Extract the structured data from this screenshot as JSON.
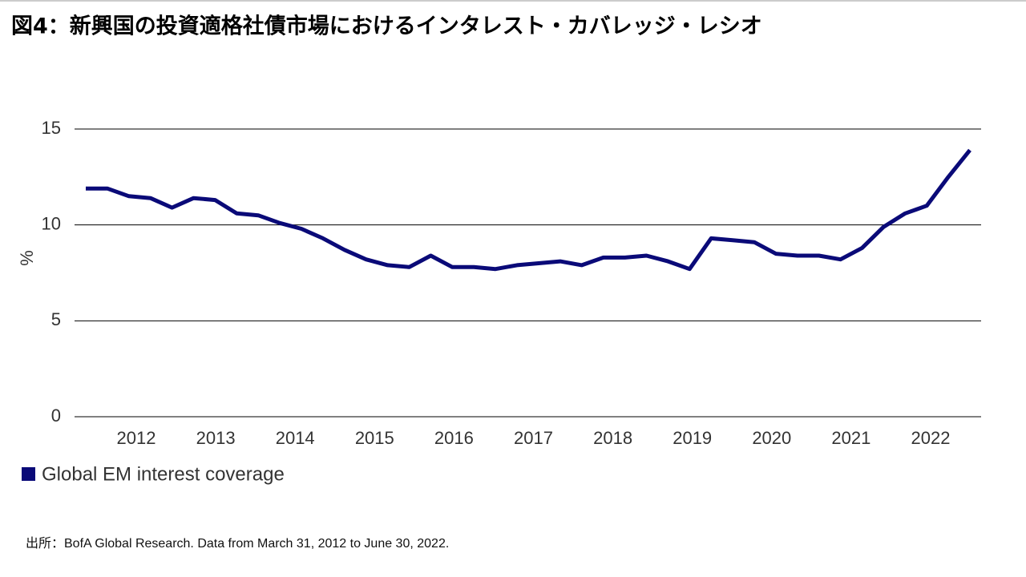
{
  "chart_data": {
    "type": "line",
    "title": "図4：新興国の投資適格社債市場におけるインタレスト・カバレッジ・レシオ",
    "ylabel": "%",
    "xticks": [
      "2012",
      "2013",
      "2014",
      "2015",
      "2016",
      "2017",
      "2018",
      "2019",
      "2020",
      "2021",
      "2022"
    ],
    "ylim": [
      0,
      15
    ],
    "yticks": [
      0,
      5,
      10,
      15
    ],
    "grid": true,
    "series": [
      {
        "name": "Global EM interest coverage",
        "color": "#0a0a78",
        "values": [
          11.9,
          11.9,
          11.5,
          11.4,
          10.9,
          11.4,
          11.3,
          10.6,
          10.5,
          10.1,
          9.8,
          9.3,
          8.7,
          8.2,
          7.9,
          7.8,
          8.4,
          7.8,
          7.8,
          7.7,
          7.9,
          8.0,
          8.1,
          7.9,
          8.3,
          8.3,
          8.4,
          8.1,
          7.7,
          9.3,
          9.2,
          9.1,
          8.5,
          8.4,
          8.4,
          8.2,
          8.8,
          9.9,
          10.6,
          11.0,
          12.5,
          13.9
        ]
      }
    ],
    "source": "出所：BofA Global Research. Data from March 31, 2012 to June 30, 2022."
  }
}
